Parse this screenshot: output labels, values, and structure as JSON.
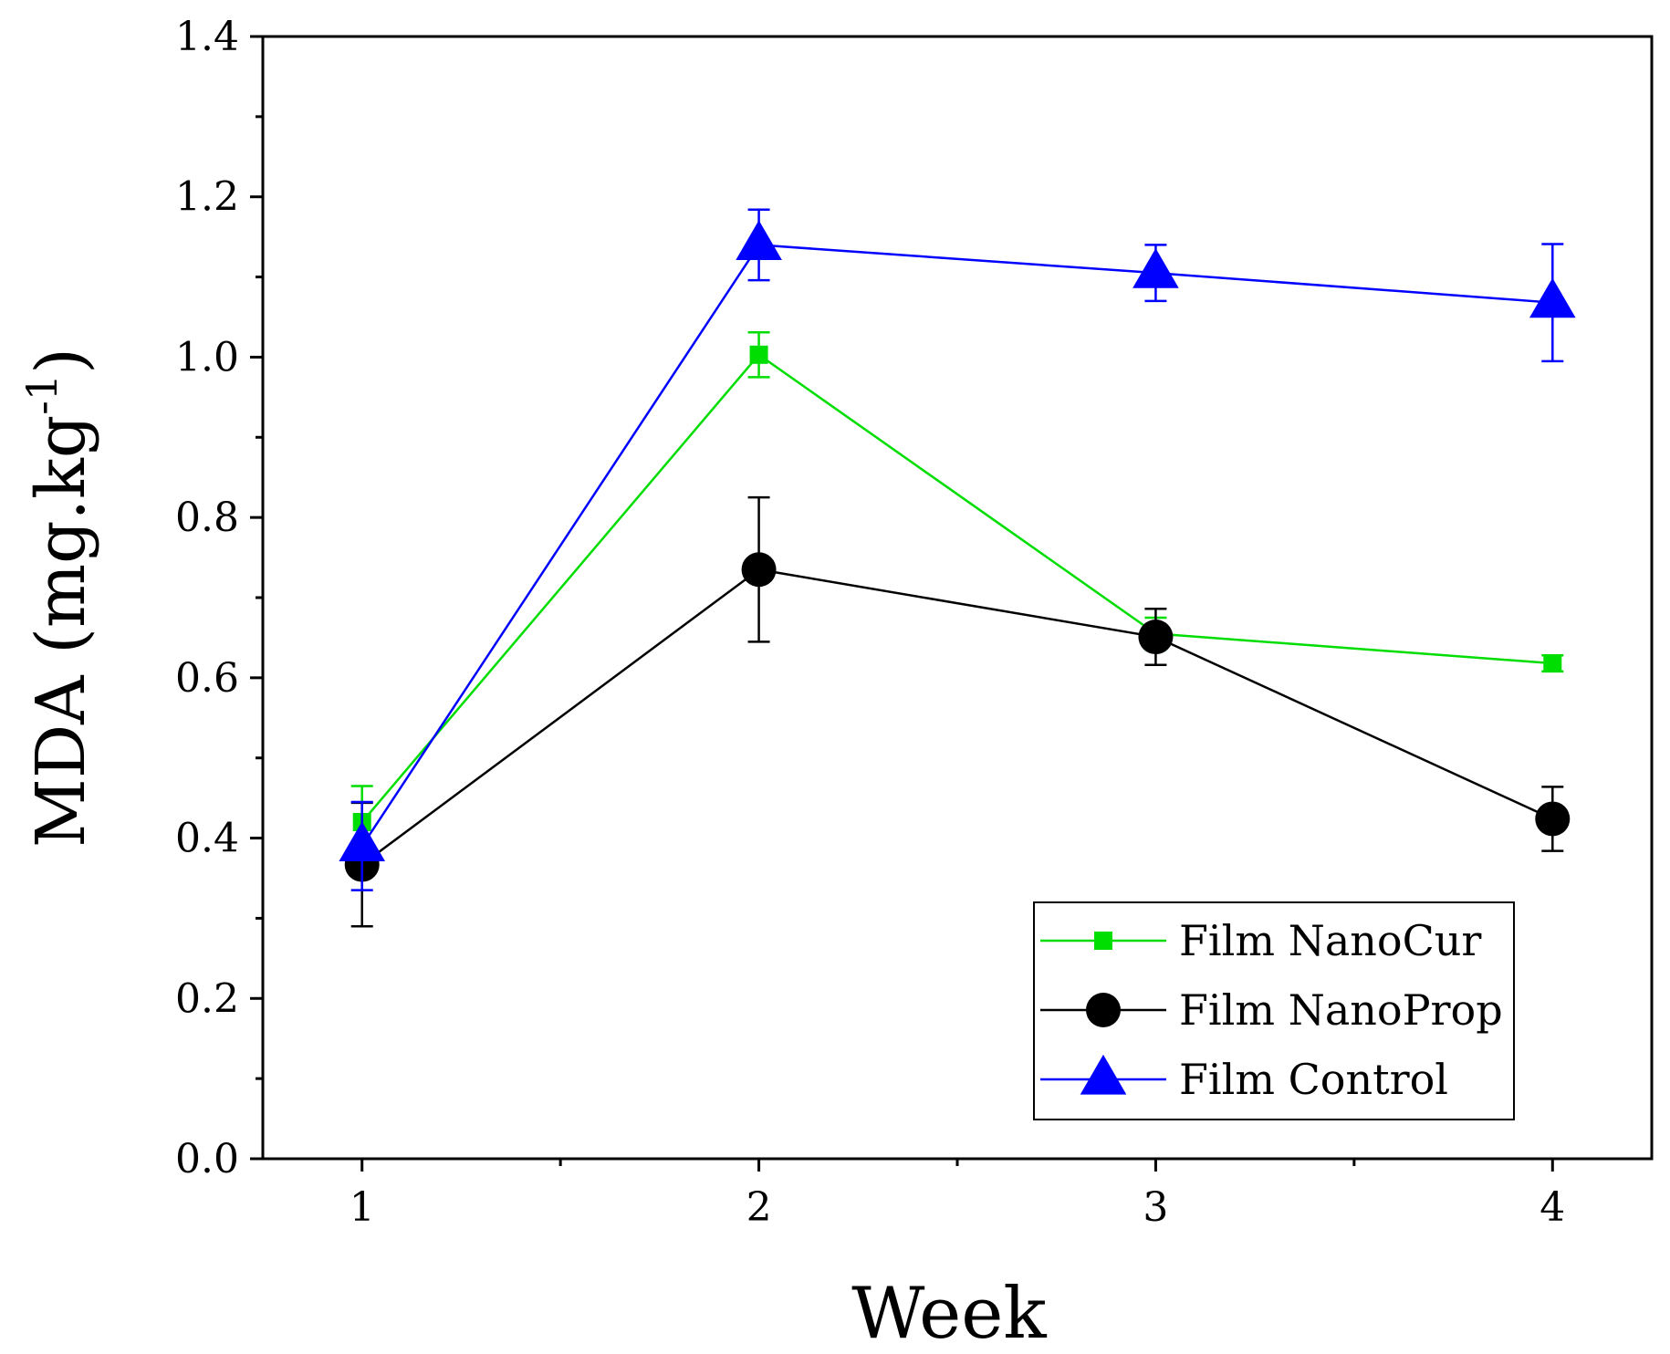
{
  "chart_data": {
    "type": "line",
    "title": "",
    "xlabel": "Week",
    "ylabel_main": "MDA (mg.kg",
    "ylabel_sup": "-1",
    "ylabel_close": ")",
    "x": [
      1,
      2,
      3,
      4
    ],
    "x_tick_labels": [
      "1",
      "2",
      "3",
      "4"
    ],
    "xlim": [
      0.75,
      4.25
    ],
    "ylim": [
      0.0,
      1.4
    ],
    "y_ticks": [
      0.0,
      0.2,
      0.4,
      0.6,
      0.8,
      1.0,
      1.2,
      1.4
    ],
    "y_tick_labels": [
      "0.0",
      "0.2",
      "0.4",
      "0.6",
      "0.8",
      "1.0",
      "1.2",
      "1.4"
    ],
    "legend_position": "bottom-right",
    "series": [
      {
        "name": "Film NanoCur",
        "color": "#00dd00",
        "marker": "square",
        "values": [
          0.42,
          1.003,
          0.655,
          0.618
        ],
        "errors": [
          0.045,
          0.028,
          0.02,
          0.01
        ]
      },
      {
        "name": "Film NanoProp",
        "color": "#000000",
        "marker": "circle",
        "values": [
          0.367,
          0.735,
          0.651,
          0.424
        ],
        "errors": [
          0.077,
          0.09,
          0.035,
          0.04
        ]
      },
      {
        "name": "Film Control",
        "color": "#0000ff",
        "marker": "triangle",
        "values": [
          0.39,
          1.14,
          1.105,
          1.068
        ],
        "errors": [
          0.055,
          0.044,
          0.035,
          0.073
        ]
      }
    ]
  }
}
